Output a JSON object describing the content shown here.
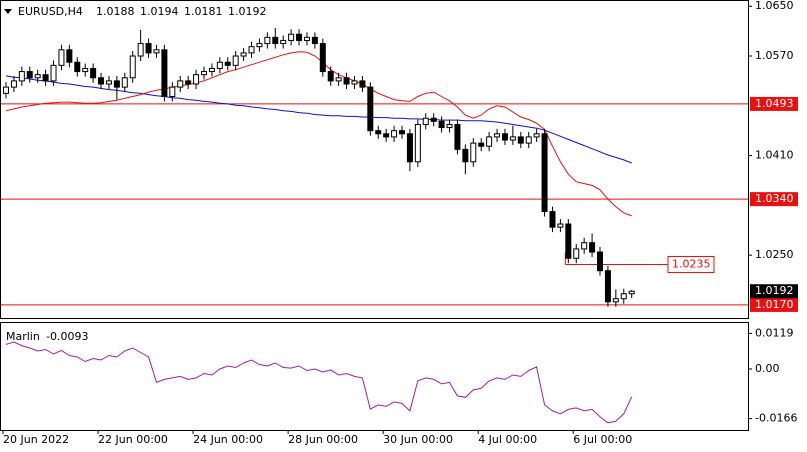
{
  "chart_data": {
    "type": "candlestick",
    "title": "EURUSD,H4",
    "categories": [
      "20 Jun 2022",
      null,
      null,
      null,
      null,
      null,
      null,
      null,
      null,
      null,
      null,
      null,
      "22 Jun 00:00",
      null,
      null,
      null,
      null,
      null,
      null,
      null,
      null,
      null,
      null,
      null,
      "24 Jun 00:00",
      null,
      null,
      null,
      null,
      null,
      null,
      null,
      null,
      null,
      null,
      null,
      "28 Jun 00:00",
      null,
      null,
      null,
      null,
      null,
      null,
      null,
      null,
      null,
      null,
      null,
      "30 Jun 00:00",
      null,
      null,
      null,
      null,
      null,
      null,
      null,
      null,
      null,
      null,
      null,
      "4 Jul 00:00",
      null,
      null,
      null,
      null,
      null,
      null,
      null,
      null,
      null,
      null,
      null,
      "6 Jul 00:00",
      null,
      null,
      null,
      null,
      null,
      null,
      null
    ],
    "open": [
      1.051,
      1.052,
      1.053,
      1.0545,
      1.0535,
      1.054,
      1.053,
      1.0555,
      1.058,
      1.056,
      1.0545,
      1.055,
      1.0535,
      1.0525,
      1.053,
      1.052,
      1.0535,
      1.057,
      1.059,
      1.0575,
      1.058,
      1.0505,
      1.052,
      1.053,
      1.0525,
      1.054,
      1.0545,
      1.055,
      1.056,
      1.0555,
      1.057,
      1.0575,
      1.0585,
      1.059,
      1.06,
      1.059,
      1.0595,
      1.0605,
      1.0595,
      1.06,
      1.059,
      1.0545,
      1.053,
      1.0535,
      1.0525,
      1.053,
      1.052,
      1.045,
      1.0445,
      1.044,
      1.045,
      1.0445,
      1.04,
      1.046,
      1.047,
      1.0465,
      1.0455,
      1.046,
      1.042,
      1.04,
      1.043,
      1.0425,
      1.044,
      1.0445,
      1.0435,
      1.044,
      1.043,
      1.044,
      1.0445,
      1.032,
      1.0295,
      1.03,
      1.0245,
      1.026,
      1.027,
      1.0255,
      1.0225,
      1.0175,
      1.018,
      1.0188
    ],
    "high": [
      1.0528,
      1.0538,
      1.0553,
      1.0553,
      1.0548,
      1.0548,
      1.0563,
      1.0588,
      1.0588,
      1.0568,
      1.0558,
      1.0558,
      1.0543,
      1.0538,
      1.0538,
      1.0543,
      1.0578,
      1.0612,
      1.0598,
      1.0588,
      1.0588,
      1.0528,
      1.0538,
      1.0538,
      1.0548,
      1.0553,
      1.0558,
      1.0568,
      1.0568,
      1.0578,
      1.0583,
      1.0593,
      1.0598,
      1.0608,
      1.0615,
      1.0603,
      1.0613,
      1.0613,
      1.0608,
      1.0608,
      1.0598,
      1.0553,
      1.0543,
      1.0543,
      1.0538,
      1.0538,
      1.0528,
      1.0458,
      1.0453,
      1.0458,
      1.0458,
      1.0453,
      1.0468,
      1.0478,
      1.0478,
      1.0473,
      1.0468,
      1.0468,
      1.0428,
      1.0438,
      1.0438,
      1.0448,
      1.0453,
      1.0453,
      1.0458,
      1.0448,
      1.0448,
      1.0453,
      1.0453,
      1.0328,
      1.0308,
      1.0308,
      1.0268,
      1.0278,
      1.0285,
      1.0263,
      1.0233,
      1.0195,
      1.0196,
      1.0194
    ],
    "low": [
      1.0502,
      1.0512,
      1.0522,
      1.0527,
      1.0527,
      1.0522,
      1.0522,
      1.0547,
      1.0552,
      1.0537,
      1.0537,
      1.0527,
      1.0517,
      1.0517,
      1.05,
      1.0512,
      1.0527,
      1.0562,
      1.0567,
      1.0567,
      1.0497,
      1.0497,
      1.0512,
      1.0517,
      1.0517,
      1.0532,
      1.0537,
      1.0542,
      1.0547,
      1.0547,
      1.0562,
      1.0567,
      1.0577,
      1.0582,
      1.0582,
      1.0582,
      1.0587,
      1.0587,
      1.0587,
      1.0582,
      1.0537,
      1.0522,
      1.0522,
      1.0517,
      1.0517,
      1.0512,
      1.0442,
      1.0437,
      1.0432,
      1.0432,
      1.0437,
      1.0385,
      1.0392,
      1.0452,
      1.0457,
      1.0447,
      1.0447,
      1.0412,
      1.038,
      1.0392,
      1.0417,
      1.0417,
      1.0432,
      1.0427,
      1.0427,
      1.0422,
      1.0422,
      1.0432,
      1.0312,
      1.0287,
      1.0287,
      1.0237,
      1.0237,
      1.0252,
      1.0247,
      1.0217,
      1.0167,
      1.0167,
      1.0172,
      1.0181
    ],
    "close": [
      1.052,
      1.053,
      1.0545,
      1.0535,
      1.054,
      1.053,
      1.0555,
      1.058,
      1.056,
      1.0545,
      1.055,
      1.0535,
      1.0525,
      1.053,
      1.052,
      1.0535,
      1.057,
      1.059,
      1.0575,
      1.058,
      1.0505,
      1.052,
      1.053,
      1.0525,
      1.054,
      1.0545,
      1.055,
      1.056,
      1.0555,
      1.057,
      1.0575,
      1.0585,
      1.059,
      1.06,
      1.059,
      1.0595,
      1.0605,
      1.0595,
      1.06,
      1.059,
      1.0545,
      1.053,
      1.0535,
      1.0525,
      1.053,
      1.052,
      1.045,
      1.0445,
      1.044,
      1.045,
      1.0445,
      1.04,
      1.046,
      1.047,
      1.0465,
      1.0455,
      1.046,
      1.042,
      1.04,
      1.043,
      1.0425,
      1.044,
      1.0445,
      1.0435,
      1.044,
      1.043,
      1.044,
      1.0445,
      1.032,
      1.0295,
      1.03,
      1.0245,
      1.026,
      1.027,
      1.0255,
      1.0225,
      1.0175,
      1.018,
      1.0188,
      1.0192
    ],
    "up_color": "#ffffff",
    "down_color": "#000000",
    "lines": [
      {
        "color": "#1010c8",
        "values": [
          1.0538,
          1.0536,
          1.0535,
          1.0533,
          1.0531,
          1.053,
          1.0528,
          1.0526,
          1.0525,
          1.0523,
          1.0521,
          1.052,
          1.0518,
          1.0516,
          1.0515,
          1.0513,
          1.0511,
          1.051,
          1.0508,
          1.0506,
          1.0505,
          1.0503,
          1.0502,
          1.05,
          1.0499,
          1.0497,
          1.0496,
          1.0494,
          1.0493,
          1.0491,
          1.049,
          1.0488,
          1.0487,
          1.0485,
          1.0484,
          1.0482,
          1.0481,
          1.0479,
          1.0478,
          1.0476,
          1.0475,
          1.0474,
          1.0474,
          1.0473,
          1.0473,
          1.0472,
          1.0472,
          1.0471,
          1.0471,
          1.047,
          1.047,
          1.0469,
          1.0469,
          1.0468,
          1.0468,
          1.0467,
          1.0467,
          1.0467,
          1.0466,
          1.0466,
          1.0466,
          1.0465,
          1.0464,
          1.0462,
          1.046,
          1.0458,
          1.0456,
          1.0454,
          1.0451,
          1.0446,
          1.0441,
          1.0436,
          1.0431,
          1.0426,
          1.0421,
          1.0416,
          1.0411,
          1.0407,
          1.0403,
          1.0398
        ]
      },
      {
        "color": "#e81010",
        "values": [
          1.0482,
          1.0485,
          1.0488,
          1.049,
          1.0492,
          1.0494,
          1.0495,
          1.0496,
          1.0496,
          1.0495,
          1.0494,
          1.0494,
          1.0495,
          1.0497,
          1.0499,
          1.0502,
          1.0505,
          1.0508,
          1.0512,
          1.0515,
          1.0517,
          1.052,
          1.0522,
          1.0524,
          1.0527,
          1.053,
          1.0535,
          1.054,
          1.0545,
          1.0548,
          1.0552,
          1.0556,
          1.056,
          1.0564,
          1.0568,
          1.0572,
          1.0575,
          1.0577,
          1.0576,
          1.057,
          1.056,
          1.0548,
          1.054,
          1.0535,
          1.053,
          1.0525,
          1.0517,
          1.051,
          1.0505,
          1.05,
          1.0498,
          1.0497,
          1.0505,
          1.051,
          1.0512,
          1.0505,
          1.0498,
          1.0488,
          1.0475,
          1.047,
          1.0475,
          1.0485,
          1.049,
          1.0488,
          1.048,
          1.0472,
          1.0468,
          1.0462,
          1.0452,
          1.0425,
          1.04,
          1.038,
          1.0368,
          1.0365,
          1.0362,
          1.0355,
          1.034,
          1.0328,
          1.0318,
          1.0313
        ]
      }
    ],
    "levels": [
      {
        "value": 1.0493,
        "label": "1.0493"
      },
      {
        "value": 1.034,
        "label": "1.0340"
      },
      {
        "value": 1.017,
        "label": "1.0170"
      }
    ],
    "target_level": {
      "value": 1.0235,
      "label": "1.0235"
    },
    "level_color": "#e81010",
    "ylim": [
      1.0149,
      1.066
    ],
    "yticks": [
      {
        "value": 1.065,
        "label": "1.0650"
      },
      {
        "value": 1.057,
        "label": "1.0570"
      },
      {
        "value": 1.041,
        "label": "1.0410"
      },
      {
        "value": 1.025,
        "label": "1.0250"
      }
    ],
    "indicator": {
      "name": "Marlin",
      "color": "#a020a0",
      "values": [
        0.0082,
        0.009,
        0.0078,
        0.007,
        0.006,
        0.0065,
        0.005,
        0.0062,
        0.0045,
        0.004,
        0.0025,
        0.0035,
        0.003,
        0.0045,
        0.004,
        0.006,
        0.007,
        0.0055,
        0.004,
        -0.0045,
        -0.0035,
        -0.003,
        -0.0025,
        -0.0035,
        -0.003,
        -0.0015,
        -0.002,
        0.0,
        0.001,
        0.0005,
        0.002,
        0.003,
        0.0015,
        0.001,
        0.002,
        0.0005,
        0.0003,
        0.001,
        -0.0005,
        0.0,
        -0.001,
        -0.0003,
        -0.002,
        -0.0015,
        -0.0025,
        -0.003,
        -0.0134,
        -0.012,
        -0.0125,
        -0.011,
        -0.0115,
        -0.014,
        -0.004,
        -0.003,
        -0.0035,
        -0.005,
        -0.0045,
        -0.009,
        -0.0095,
        -0.007,
        -0.0065,
        -0.004,
        -0.003,
        -0.0035,
        -0.002,
        -0.0025,
        -0.0005,
        0.0007,
        -0.012,
        -0.014,
        -0.015,
        -0.0135,
        -0.013,
        -0.014,
        -0.0135,
        -0.016,
        -0.018,
        -0.0175,
        -0.015,
        -0.0093
      ],
      "ylim": [
        -0.0204,
        0.0157
      ],
      "yticks": [
        0.0119,
        {
          "value": 0,
          "label": "0.00"
        },
        -0.0166
      ]
    }
  }
}
